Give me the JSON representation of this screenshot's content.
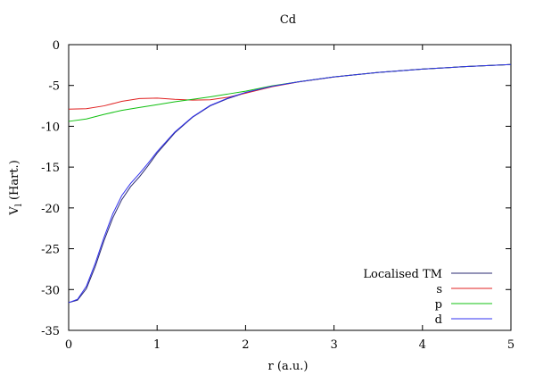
{
  "chart_data": {
    "type": "line",
    "title": "Cd",
    "xlabel": "r (a.u.)",
    "ylabel_main": "V",
    "ylabel_sub": "l",
    "ylabel_tail": " (Hart.)",
    "xlim": [
      0,
      5
    ],
    "ylim": [
      -35,
      0
    ],
    "xticks": [
      0,
      1,
      2,
      3,
      4,
      5
    ],
    "yticks": [
      0,
      -5,
      -10,
      -15,
      -20,
      -25,
      -30,
      -35
    ],
    "grid": false,
    "legend_position": "bottom-right",
    "series": [
      {
        "name": "Localised TM",
        "color": "#2a2a70",
        "x": [
          0,
          0.1,
          0.2,
          0.3,
          0.4,
          0.5,
          0.6,
          0.7,
          0.8,
          0.9,
          1.0,
          1.2,
          1.4,
          1.6,
          1.8,
          2.0,
          2.3,
          2.6,
          3.0,
          3.5,
          4.0,
          4.5,
          5.0
        ],
        "y": [
          -31.6,
          -31.3,
          -29.9,
          -27.2,
          -24.0,
          -21.2,
          -19.0,
          -17.4,
          -16.2,
          -14.8,
          -13.3,
          -10.8,
          -8.9,
          -7.5,
          -6.6,
          -5.9,
          -5.1,
          -4.55,
          -3.95,
          -3.4,
          -3.0,
          -2.68,
          -2.43
        ]
      },
      {
        "name": "s",
        "color": "#e02020",
        "x": [
          0,
          0.2,
          0.4,
          0.6,
          0.8,
          1.0,
          1.2,
          1.4,
          1.6,
          1.8,
          2.0,
          2.3,
          2.6,
          3.0,
          3.5,
          4.0,
          4.5,
          5.0
        ],
        "y": [
          -7.9,
          -7.85,
          -7.5,
          -6.95,
          -6.6,
          -6.55,
          -6.7,
          -6.8,
          -6.75,
          -6.45,
          -5.95,
          -5.15,
          -4.57,
          -3.96,
          -3.4,
          -3.0,
          -2.68,
          -2.43
        ]
      },
      {
        "name": "p",
        "color": "#10c010",
        "x": [
          0,
          0.2,
          0.4,
          0.6,
          0.8,
          1.0,
          1.2,
          1.4,
          1.6,
          1.8,
          2.0,
          2.3,
          2.6,
          3.0,
          3.5,
          4.0,
          4.5,
          5.0
        ],
        "y": [
          -9.4,
          -9.1,
          -8.55,
          -8.05,
          -7.7,
          -7.35,
          -7.0,
          -6.7,
          -6.4,
          -6.05,
          -5.7,
          -5.05,
          -4.55,
          -3.95,
          -3.4,
          -3.0,
          -2.68,
          -2.43
        ]
      },
      {
        "name": "d",
        "color": "#3030f0",
        "x": [
          0,
          0.1,
          0.2,
          0.3,
          0.4,
          0.5,
          0.6,
          0.7,
          0.8,
          0.9,
          1.0,
          1.2,
          1.4,
          1.6,
          1.8,
          2.0,
          2.3,
          2.6,
          3.0,
          3.5,
          4.0,
          4.5,
          5.0
        ],
        "y": [
          -31.6,
          -31.2,
          -29.6,
          -26.8,
          -23.6,
          -20.7,
          -18.5,
          -17.0,
          -15.8,
          -14.5,
          -13.1,
          -10.7,
          -8.85,
          -7.45,
          -6.55,
          -5.85,
          -5.1,
          -4.55,
          -3.95,
          -3.4,
          -3.0,
          -2.68,
          -2.43
        ]
      }
    ]
  }
}
